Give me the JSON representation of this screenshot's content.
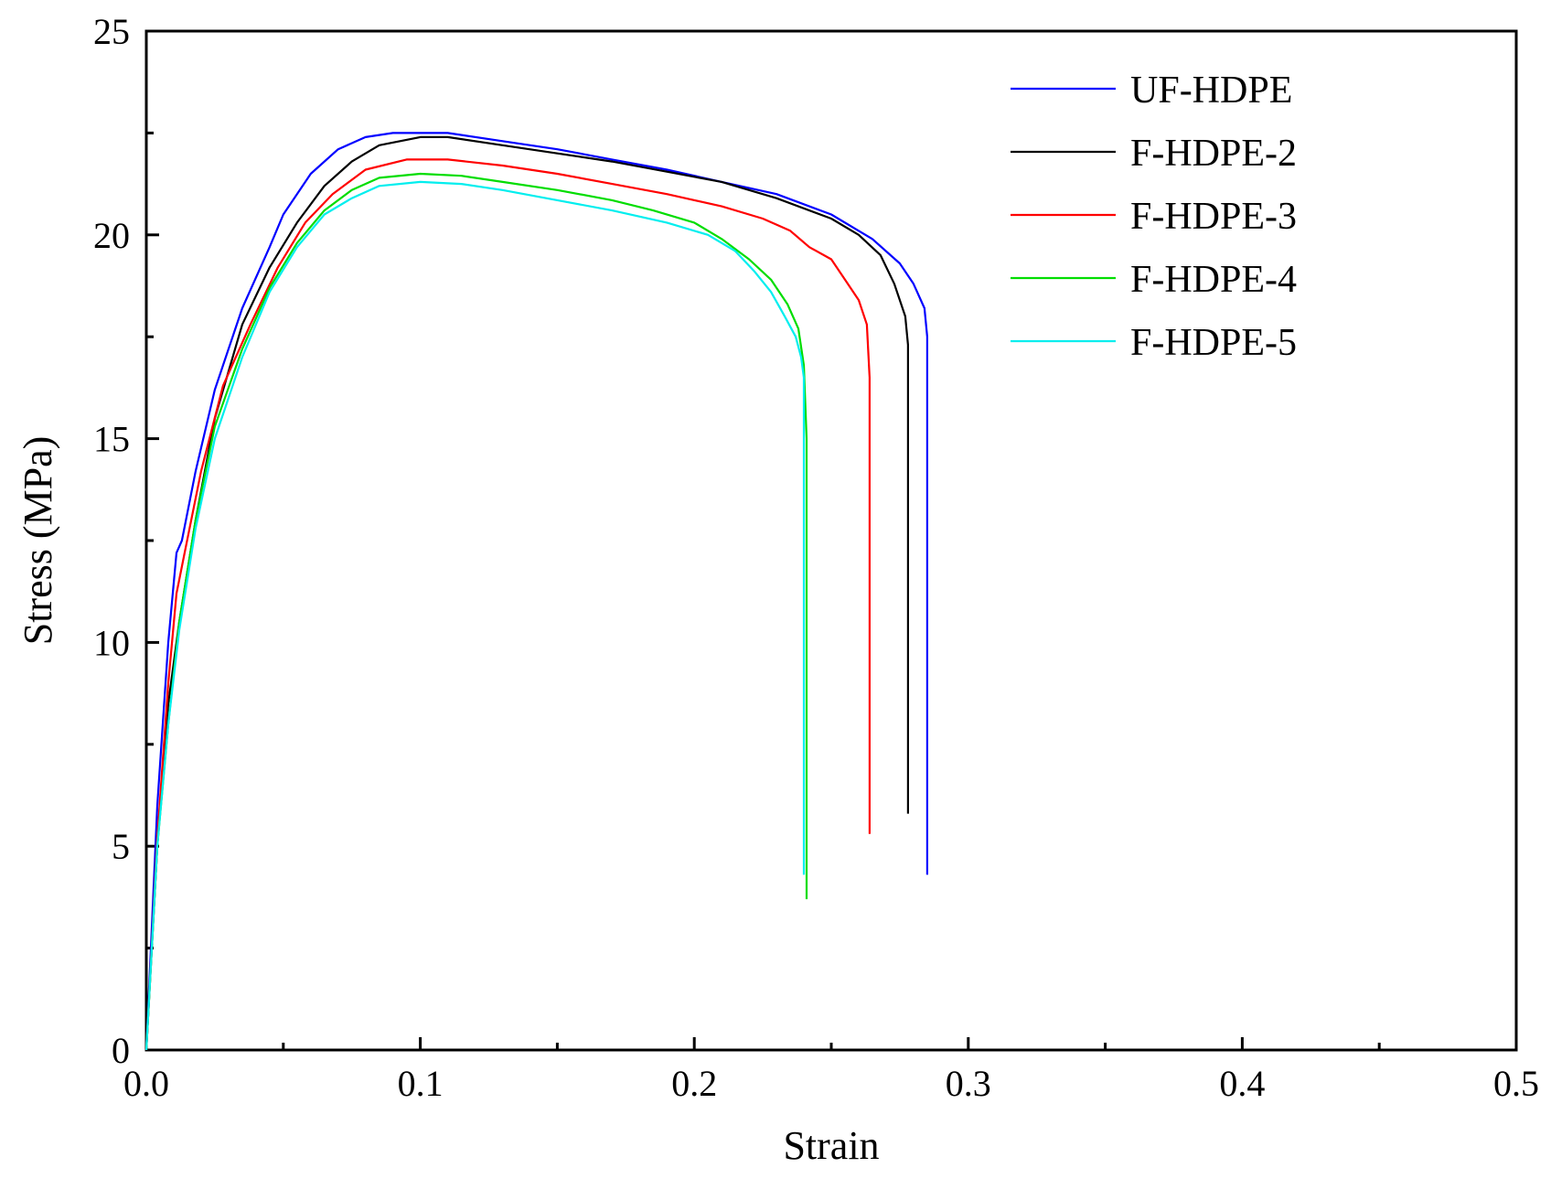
{
  "chart_data": {
    "type": "line",
    "title": "",
    "xlabel": "Strain",
    "ylabel": "Stress (MPa)",
    "xlim": [
      0.0,
      0.5
    ],
    "ylim": [
      0,
      25
    ],
    "x_ticks": [
      0.0,
      0.1,
      0.2,
      0.3,
      0.4,
      0.5
    ],
    "x_tick_labels": [
      "0.0",
      "0.1",
      "0.2",
      "0.3",
      "0.4",
      "0.5"
    ],
    "y_ticks": [
      0,
      5,
      10,
      15,
      20,
      25
    ],
    "y_tick_labels": [
      "0",
      "5",
      "10",
      "15",
      "20",
      "25"
    ],
    "grid": false,
    "legend_position": "top-right",
    "series": [
      {
        "name": "UF-HDPE",
        "color": "#0000ff",
        "points": [
          [
            0.0,
            0
          ],
          [
            0.004,
            6
          ],
          [
            0.008,
            10
          ],
          [
            0.011,
            12.2
          ],
          [
            0.013,
            12.5
          ],
          [
            0.018,
            14.2
          ],
          [
            0.025,
            16.2
          ],
          [
            0.035,
            18.2
          ],
          [
            0.045,
            19.7
          ],
          [
            0.05,
            20.5
          ],
          [
            0.055,
            21.0
          ],
          [
            0.06,
            21.5
          ],
          [
            0.07,
            22.1
          ],
          [
            0.08,
            22.4
          ],
          [
            0.09,
            22.5
          ],
          [
            0.1,
            22.5
          ],
          [
            0.11,
            22.5
          ],
          [
            0.13,
            22.3
          ],
          [
            0.15,
            22.1
          ],
          [
            0.17,
            21.85
          ],
          [
            0.19,
            21.6
          ],
          [
            0.21,
            21.3
          ],
          [
            0.23,
            21.0
          ],
          [
            0.25,
            20.5
          ],
          [
            0.265,
            19.9
          ],
          [
            0.275,
            19.3
          ],
          [
            0.28,
            18.8
          ],
          [
            0.284,
            18.2
          ],
          [
            0.285,
            17.5
          ],
          [
            0.285,
            4.3
          ]
        ]
      },
      {
        "name": "F-HDPE-2",
        "color": "#000000",
        "points": [
          [
            0.0,
            0
          ],
          [
            0.004,
            5
          ],
          [
            0.008,
            8.5
          ],
          [
            0.012,
            10.5
          ],
          [
            0.018,
            13.0
          ],
          [
            0.025,
            15.5
          ],
          [
            0.035,
            17.8
          ],
          [
            0.045,
            19.2
          ],
          [
            0.055,
            20.3
          ],
          [
            0.065,
            21.2
          ],
          [
            0.075,
            21.8
          ],
          [
            0.085,
            22.2
          ],
          [
            0.1,
            22.4
          ],
          [
            0.11,
            22.4
          ],
          [
            0.13,
            22.2
          ],
          [
            0.15,
            22.0
          ],
          [
            0.17,
            21.8
          ],
          [
            0.19,
            21.55
          ],
          [
            0.21,
            21.3
          ],
          [
            0.23,
            20.9
          ],
          [
            0.25,
            20.4
          ],
          [
            0.26,
            20.0
          ],
          [
            0.268,
            19.5
          ],
          [
            0.273,
            18.8
          ],
          [
            0.277,
            18.0
          ],
          [
            0.278,
            17.3
          ],
          [
            0.278,
            5.8
          ]
        ]
      },
      {
        "name": "F-HDPE-3",
        "color": "#ff0000",
        "points": [
          [
            0.0,
            0
          ],
          [
            0.004,
            5.2
          ],
          [
            0.008,
            9.0
          ],
          [
            0.011,
            11.2
          ],
          [
            0.014,
            12.2
          ],
          [
            0.02,
            14.2
          ],
          [
            0.028,
            16.3
          ],
          [
            0.038,
            17.8
          ],
          [
            0.048,
            19.2
          ],
          [
            0.058,
            20.3
          ],
          [
            0.068,
            21.0
          ],
          [
            0.08,
            21.6
          ],
          [
            0.095,
            21.85
          ],
          [
            0.11,
            21.85
          ],
          [
            0.13,
            21.7
          ],
          [
            0.15,
            21.5
          ],
          [
            0.17,
            21.25
          ],
          [
            0.19,
            21.0
          ],
          [
            0.21,
            20.7
          ],
          [
            0.225,
            20.4
          ],
          [
            0.235,
            20.1
          ],
          [
            0.242,
            19.7
          ],
          [
            0.25,
            19.4
          ],
          [
            0.255,
            18.9
          ],
          [
            0.26,
            18.4
          ],
          [
            0.263,
            17.8
          ],
          [
            0.264,
            16.5
          ],
          [
            0.264,
            5.3
          ]
        ]
      },
      {
        "name": "F-HDPE-4",
        "color": "#00dd00",
        "points": [
          [
            0.0,
            0
          ],
          [
            0.004,
            5.0
          ],
          [
            0.008,
            8.0
          ],
          [
            0.012,
            10.5
          ],
          [
            0.018,
            13.0
          ],
          [
            0.025,
            15.3
          ],
          [
            0.035,
            17.2
          ],
          [
            0.045,
            18.7
          ],
          [
            0.055,
            19.8
          ],
          [
            0.065,
            20.6
          ],
          [
            0.075,
            21.1
          ],
          [
            0.085,
            21.4
          ],
          [
            0.1,
            21.5
          ],
          [
            0.115,
            21.45
          ],
          [
            0.13,
            21.3
          ],
          [
            0.15,
            21.1
          ],
          [
            0.17,
            20.85
          ],
          [
            0.185,
            20.6
          ],
          [
            0.2,
            20.3
          ],
          [
            0.21,
            19.9
          ],
          [
            0.22,
            19.4
          ],
          [
            0.228,
            18.9
          ],
          [
            0.234,
            18.3
          ],
          [
            0.238,
            17.7
          ],
          [
            0.24,
            16.8
          ],
          [
            0.241,
            15.0
          ],
          [
            0.241,
            3.7
          ]
        ]
      },
      {
        "name": "F-HDPE-5",
        "color": "#00eeee",
        "points": [
          [
            0.0,
            0
          ],
          [
            0.004,
            5.0
          ],
          [
            0.008,
            8.0
          ],
          [
            0.012,
            10.3
          ],
          [
            0.018,
            12.8
          ],
          [
            0.025,
            15.0
          ],
          [
            0.035,
            17.0
          ],
          [
            0.045,
            18.6
          ],
          [
            0.055,
            19.7
          ],
          [
            0.065,
            20.5
          ],
          [
            0.075,
            20.9
          ],
          [
            0.085,
            21.2
          ],
          [
            0.1,
            21.3
          ],
          [
            0.115,
            21.25
          ],
          [
            0.13,
            21.1
          ],
          [
            0.15,
            20.85
          ],
          [
            0.17,
            20.6
          ],
          [
            0.19,
            20.3
          ],
          [
            0.205,
            20.0
          ],
          [
            0.215,
            19.6
          ],
          [
            0.222,
            19.1
          ],
          [
            0.228,
            18.6
          ],
          [
            0.233,
            18.0
          ],
          [
            0.237,
            17.5
          ],
          [
            0.239,
            17.0
          ],
          [
            0.24,
            16.5
          ],
          [
            0.24,
            4.3
          ]
        ]
      }
    ]
  }
}
